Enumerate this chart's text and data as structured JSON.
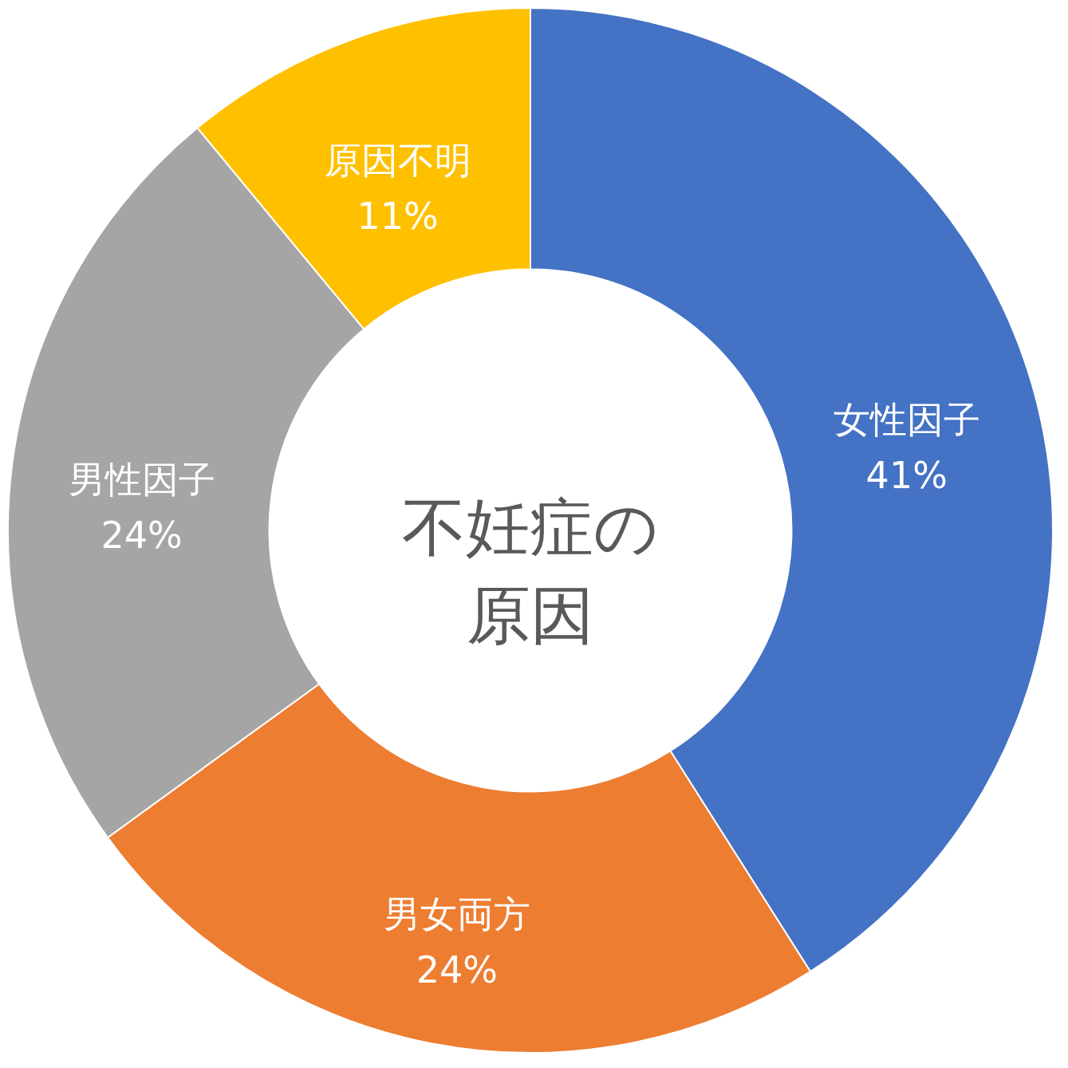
{
  "chart_data": {
    "type": "donut",
    "title": "不妊症の原因",
    "categories": [
      "女性因子",
      "男女両方",
      "男性因子",
      "原因不明"
    ],
    "values": [
      41,
      24,
      24,
      11
    ],
    "value_labels": [
      "41%",
      "24%",
      "24%",
      "11%"
    ],
    "colors": [
      "#4472c4",
      "#ed7d31",
      "#a5a5a5",
      "#ffc000"
    ],
    "legend": false
  }
}
